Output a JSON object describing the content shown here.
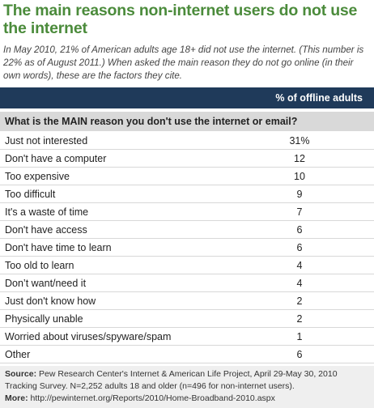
{
  "header": {
    "title": "The main reasons non-internet users do not use the internet",
    "subtitle": "In May 2010, 21% of American adults age 18+ did not use the internet. (This number is 22% as of August 2011.) When asked the main reason they do not go online (in their own words), these are the factors they cite."
  },
  "table": {
    "column_header": "% of offline adults",
    "question": "What is the MAIN reason you don't use the internet or email?",
    "rows": [
      [
        "Just not interested",
        "31%"
      ],
      [
        "Don't have a computer",
        "12"
      ],
      [
        "Too expensive",
        "10"
      ],
      [
        "Too difficult",
        "9"
      ],
      [
        "It's a waste of time",
        "7"
      ],
      [
        "Don't have access",
        "6"
      ],
      [
        "Don't have time to learn",
        "6"
      ],
      [
        "Too old to learn",
        "4"
      ],
      [
        "Don’t want/need it",
        "4"
      ],
      [
        "Just don't know how",
        "2"
      ],
      [
        "Physically unable",
        "2"
      ],
      [
        "Worried about viruses/spyware/spam",
        "1"
      ],
      [
        "Other",
        "6"
      ]
    ]
  },
  "footer": {
    "source_label": "Source:",
    "source": "Pew Research Center's Internet & American Life Project, April 29-May 30, 2010 Tracking Survey. N=2,252 adults 18 and older (n=496 for non-internet users).",
    "more_label": "More:",
    "more": "http://pewinternet.org/Reports/2010/Home-Broadband-2010.aspx"
  }
}
